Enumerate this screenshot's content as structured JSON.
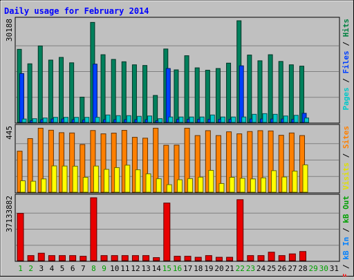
{
  "chart_data": {
    "type": "bar",
    "title": "Daily usage for February 2014",
    "days": [
      "1",
      "2",
      "3",
      "4",
      "5",
      "6",
      "7",
      "8",
      "9",
      "10",
      "11",
      "12",
      "13",
      "14",
      "15",
      "16",
      "17",
      "18",
      "19",
      "20",
      "21",
      "22",
      "23",
      "24",
      "25",
      "26",
      "27",
      "28",
      "29",
      "30",
      "31"
    ],
    "weekend_days": [
      "1",
      "2",
      "8",
      "9",
      "15",
      "16",
      "22",
      "23",
      "29",
      "30"
    ],
    "panels": [
      {
        "id": "hits",
        "ymax_label": "30188",
        "ymax": 30188,
        "legend": [
          {
            "text": "Pages",
            "color": "#00c8c8"
          },
          {
            "text": " / ",
            "color": "#000000"
          },
          {
            "text": "Files",
            "color": "#0040ff"
          },
          {
            "text": " / ",
            "color": "#000000"
          },
          {
            "text": "Hits",
            "color": "#008040"
          }
        ],
        "series": [
          {
            "name": "Hits",
            "color": "#00805c",
            "values": [
              21700,
              17400,
              22700,
              18500,
              19300,
              17700,
              7500,
              29700,
              20100,
              18700,
              18000,
              17100,
              16900,
              8000,
              21800,
              15600,
              19800,
              16200,
              15500,
              16000,
              17600,
              30188,
              20000,
              18300,
              20100,
              18100,
              17100,
              16700,
              0,
              0,
              0
            ]
          },
          {
            "name": "Files",
            "color": "#0040ff",
            "values": [
              14500,
              500,
              800,
              1000,
              1000,
              800,
              700,
              17300,
              800,
              800,
              800,
              800,
              800,
              500,
              16000,
              900,
              900,
              900,
              900,
              900,
              900,
              16800,
              1000,
              1000,
              1000,
              1000,
              900,
              2700,
              0,
              0,
              0
            ]
          },
          {
            "name": "Pages",
            "color": "#00c8c8",
            "values": [
              1000,
              1100,
              1300,
              1500,
              1500,
              1500,
              1500,
              1500,
              2200,
              2000,
              2000,
              1800,
              1900,
              1100,
              1600,
              1600,
              1600,
              1600,
              2200,
              1600,
              1600,
              1600,
              2400,
              2600,
              2400,
              1900,
              2100,
              1300,
              0,
              0,
              0
            ]
          }
        ]
      },
      {
        "id": "visits",
        "ymax_label": "445",
        "ymax": 445,
        "legend": [
          {
            "text": "Visits",
            "color": "#e0e000"
          },
          {
            "text": " / ",
            "color": "#000000"
          },
          {
            "text": "Sites",
            "color": "#ff8000"
          }
        ],
        "series": [
          {
            "name": "Sites",
            "color": "#ff8000",
            "values": [
              284,
              371,
              443,
              429,
              412,
              410,
              330,
              427,
              404,
              409,
              428,
              380,
              374,
              443,
              325,
              326,
              443,
              392,
              426,
              392,
              418,
              404,
              420,
              426,
              424,
              394,
              410,
              392,
              0,
              0,
              0
            ]
          },
          {
            "name": "Visits",
            "color": "#ffff00",
            "values": [
              79,
              76,
              92,
              182,
              181,
              180,
              103,
              181,
              158,
              170,
              187,
              155,
              127,
              93,
              52,
              86,
              94,
              104,
              151,
              60,
              103,
              96,
              92,
              99,
              149,
              105,
              146,
              189,
              0,
              0,
              0
            ]
          }
        ]
      },
      {
        "id": "kbytes",
        "ymax_label": "37133882",
        "ymax": 37133882,
        "legend": [
          {
            "text": "kB F",
            "color": "#ff0000"
          },
          {
            "text": " / ",
            "color": "#000000"
          },
          {
            "text": "kB In",
            "color": "#0080ff"
          },
          {
            "text": " / ",
            "color": "#000000"
          },
          {
            "text": "kB Out",
            "color": "#00a000"
          }
        ],
        "series": [
          {
            "name": "kB F",
            "color": "#e80000",
            "values": [
              27900000,
              3000000,
              4400000,
              3000000,
              3000000,
              3000000,
              2600000,
              37133882,
              3000000,
              3000000,
              3000000,
              3000000,
              3000000,
              1800000,
              34000000,
              2600000,
              2600000,
              2000000,
              3000000,
              2000000,
              2000000,
              36000000,
              3000000,
              3000000,
              5000000,
              3000000,
              4000000,
              5400000,
              0,
              0,
              0
            ]
          }
        ]
      }
    ]
  }
}
